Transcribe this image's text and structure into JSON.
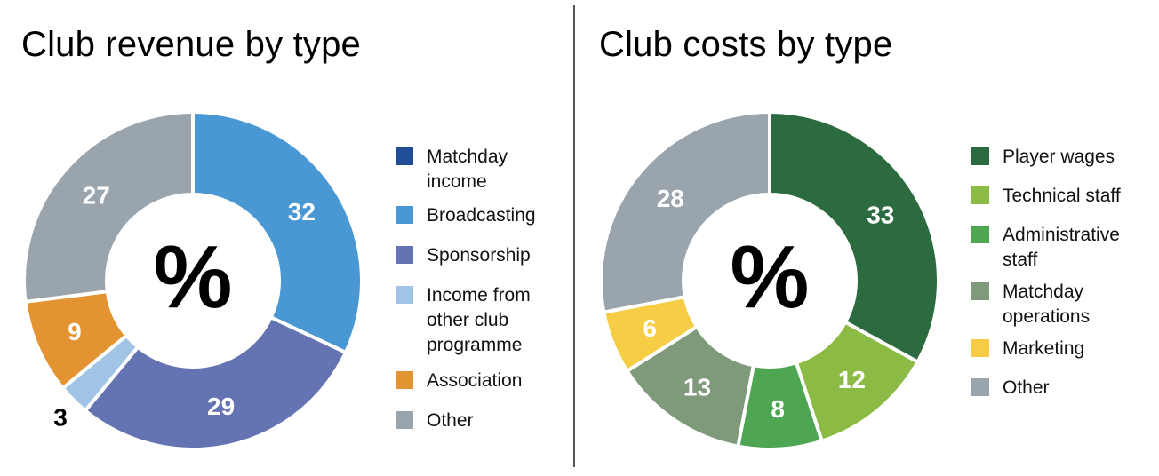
{
  "chart_data": [
    {
      "type": "pie",
      "title": "Club revenue by type",
      "center_label": "%",
      "categories": [
        "Matchday income",
        "Broadcasting",
        "Sponsorship",
        "Income from other club programme",
        "Association",
        "Other"
      ],
      "values": [
        0,
        32,
        29,
        3,
        9,
        27
      ],
      "data_labels": [
        "",
        "32",
        "29",
        "3",
        "9",
        "27"
      ],
      "colors": [
        "#1f4e96",
        "#4a98d3",
        "#6474b2",
        "#a0c3e6",
        "#e49333",
        "#9aa4ad"
      ],
      "legend": [
        {
          "label": "Matchday\nincome",
          "color": "#1f4e96"
        },
        {
          "label": "Broadcasting",
          "color": "#4a98d3"
        },
        {
          "label": "Sponsorship",
          "color": "#6474b2"
        },
        {
          "label": "Income from\nother club\nprogramme",
          "color": "#a0c3e6"
        },
        {
          "label": "Association",
          "color": "#e49333"
        },
        {
          "label": "Other",
          "color": "#9aa4ad"
        }
      ],
      "legend_position": "right"
    },
    {
      "type": "pie",
      "title": "Club costs by type",
      "center_label": "%",
      "categories": [
        "Player wages",
        "Technical staff",
        "Administrative staff",
        "Matchday operations",
        "Marketing",
        "Other"
      ],
      "values": [
        33,
        12,
        8,
        13,
        6,
        28
      ],
      "data_labels": [
        "33",
        "12",
        "8",
        "13",
        "6",
        "28"
      ],
      "colors": [
        "#2c6a3f",
        "#8bba45",
        "#4ea652",
        "#7f9a7a",
        "#f6cd45",
        "#9aa4ad"
      ],
      "legend": [
        {
          "label": "Player wages",
          "color": "#2c6a3f"
        },
        {
          "label": "Technical staff",
          "color": "#8bba45"
        },
        {
          "label": "Administrative\nstaff",
          "color": "#4ea652"
        },
        {
          "label": "Matchday\noperations",
          "color": "#7f9a7a"
        },
        {
          "label": "Marketing",
          "color": "#f6cd45"
        },
        {
          "label": "Other",
          "color": "#9aa4ad"
        }
      ],
      "legend_position": "right"
    }
  ]
}
